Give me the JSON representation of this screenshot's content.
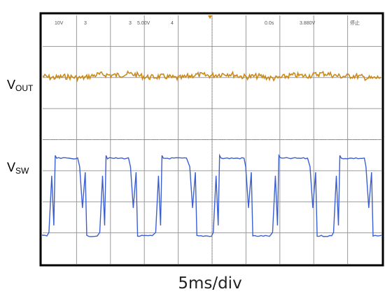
{
  "chart_data": {
    "type": "line",
    "xlabel": "5ms/div",
    "grid": true,
    "divisions": {
      "x": 10,
      "y": 8
    },
    "header": {
      "ch1_scale": "10V",
      "ch1_marker": "3",
      "ch3_marker": "3",
      "ch3_scale": "5.00V",
      "ch4_marker": "4",
      "time_offset": "0.0s",
      "trigger_level": "3.880V",
      "status": "停止"
    },
    "colors": {
      "vout": "#c98a1a",
      "vsw": "#3b5fd0",
      "grid": "#9a9a9a",
      "frame": "#000000"
    },
    "series": [
      {
        "name": "VOUT",
        "label_main": "V",
        "label_sub": "OUT",
        "description": "nearly flat DC level with small ripple",
        "level_div": 1.95,
        "ripple_div": 0.08
      },
      {
        "name": "VSW",
        "label_main": "V",
        "label_sub": "SW",
        "description": "rectangular switching waveform, high and low levels in divisions from top",
        "high_div": 4.6,
        "low_div": 7.1,
        "pulses": [
          {
            "rise": 0.35,
            "high_end": 1.05,
            "fall_end": 1.3
          },
          {
            "rise": 1.85,
            "high_end": 2.55,
            "fall_end": 2.8
          },
          {
            "rise": 3.5,
            "high_end": 4.3,
            "fall_end": 4.55
          },
          {
            "rise": 5.2,
            "high_end": 5.95,
            "fall_end": 6.2
          },
          {
            "rise": 6.95,
            "high_end": 7.85,
            "fall_end": 8.1
          },
          {
            "rise": 8.75,
            "high_end": 9.5,
            "fall_end": 9.75
          }
        ]
      }
    ]
  }
}
